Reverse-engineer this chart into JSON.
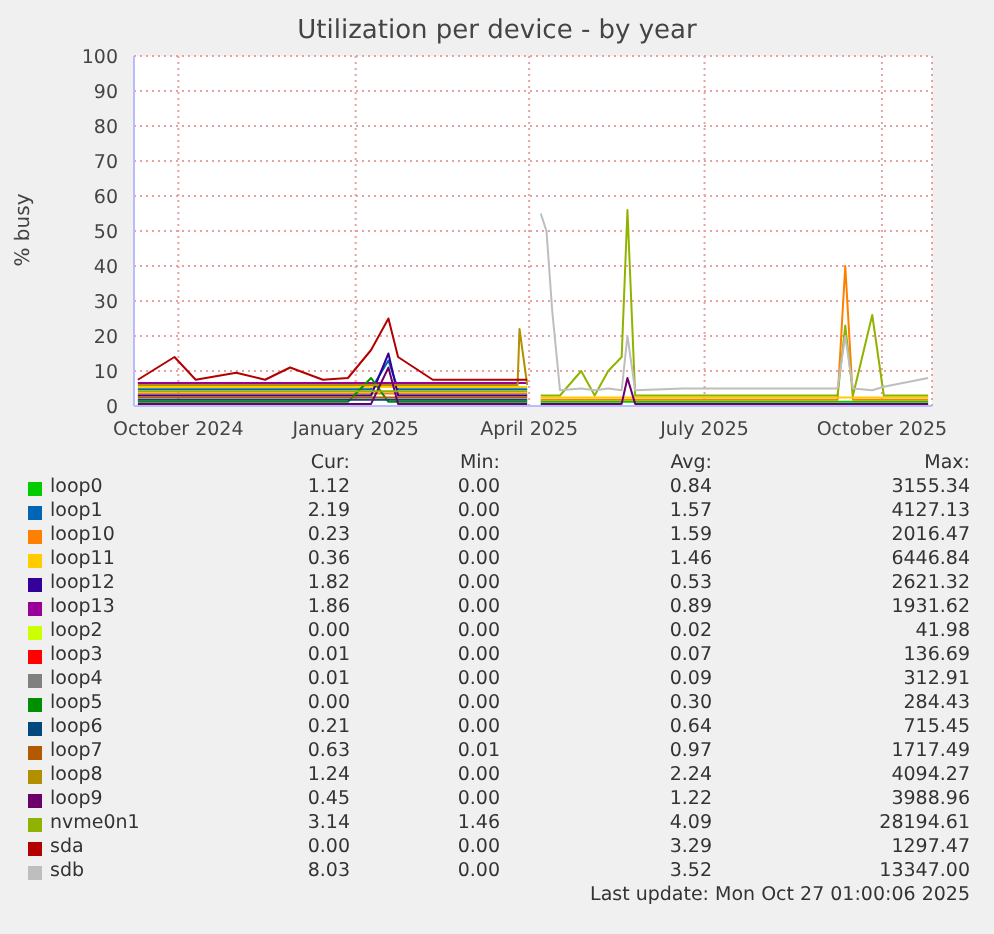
{
  "chart_data": {
    "type": "line",
    "title": "Utilization per device - by year",
    "ylabel": "% busy",
    "x": [
      "2024-09-10",
      "2024-09-29",
      "2024-10-10",
      "2024-10-31",
      "2024-11-15",
      "2024-11-28",
      "2024-12-15",
      "2024-12-28",
      "2025-01-09",
      "2025-01-18",
      "2025-01-23",
      "2025-02-10",
      "2025-03-01",
      "2025-03-26",
      "2025-03-27",
      "2025-03-31",
      "2025-04-03",
      "2025-04-07",
      "2025-04-10",
      "2025-04-13",
      "2025-04-17",
      "2025-04-28",
      "2025-05-05",
      "2025-05-12",
      "2025-05-19",
      "2025-05-22",
      "2025-05-26",
      "2025-06-20",
      "2025-07-20",
      "2025-08-20",
      "2025-09-08",
      "2025-09-12",
      "2025-09-16",
      "2025-09-26",
      "2025-10-02",
      "2025-10-25"
    ],
    "xlim": [
      "2024-09-08",
      "2025-10-27"
    ],
    "xticks": [
      {
        "value": "2024-10-01",
        "label": "October 2024"
      },
      {
        "value": "2025-01-01",
        "label": "January 2025"
      },
      {
        "value": "2025-04-01",
        "label": "April 2025"
      },
      {
        "value": "2025-07-01",
        "label": "July 2025"
      },
      {
        "value": "2025-10-01",
        "label": "October 2025"
      }
    ],
    "ylim": [
      0,
      100
    ],
    "yticks": [
      0,
      10,
      20,
      30,
      40,
      50,
      60,
      70,
      80,
      90,
      100
    ],
    "grid": true,
    "legend": "bottom",
    "marker": "none",
    "line_style": "solid",
    "series": [
      {
        "name": "loop0",
        "color": "#00cc00",
        "values": [
          null,
          null,
          null,
          null,
          null,
          null,
          null,
          null,
          null,
          null,
          null,
          null,
          null,
          null,
          null,
          null,
          null,
          1.2,
          1.2,
          1.2,
          1.2,
          1.2,
          1.2,
          1.2,
          1.2,
          1.2,
          1.2,
          1.2,
          1.2,
          1.2,
          1.2,
          1.2,
          1.2,
          1.2,
          1.2,
          1.2
        ]
      },
      {
        "name": "loop1",
        "color": "#0066b3",
        "values": [
          4.8,
          4.8,
          4.8,
          4.8,
          4.8,
          4.8,
          4.8,
          4.8,
          4.8,
          13,
          4.8,
          4.8,
          4.8,
          4.8,
          4.8,
          4.8,
          null,
          null,
          null,
          null,
          null,
          null,
          null,
          null,
          null,
          null,
          null,
          null,
          null,
          null,
          null,
          null,
          null,
          null,
          null,
          null
        ]
      },
      {
        "name": "loop10",
        "color": "#ff8000",
        "values": [
          3.6,
          3.6,
          3.6,
          3.6,
          3.6,
          3.6,
          3.6,
          3.6,
          3.6,
          3.6,
          3.6,
          3.6,
          3.6,
          3.6,
          3.6,
          3.6,
          null,
          1.8,
          1.8,
          1.8,
          1.8,
          1.8,
          1.8,
          1.8,
          1.8,
          1.8,
          1.8,
          1.8,
          1.8,
          1.8,
          1.8,
          40,
          1.8,
          1.8,
          1.8,
          1.8
        ]
      },
      {
        "name": "loop11",
        "color": "#ffcc00",
        "values": [
          5.4,
          5.4,
          5.4,
          5.4,
          5.4,
          5.4,
          5.4,
          5.4,
          5.4,
          5.4,
          5.4,
          5.4,
          5.4,
          5.4,
          5.4,
          5.4,
          null,
          2.4,
          2.4,
          2.4,
          2.4,
          2.4,
          2.4,
          2.4,
          2.4,
          2.4,
          2.4,
          2.4,
          2.4,
          2.4,
          2.4,
          2.4,
          2.4,
          2.4,
          2.4,
          2.4
        ]
      },
      {
        "name": "loop12",
        "color": "#330099",
        "values": [
          3,
          3,
          3,
          3,
          3,
          3,
          3,
          3,
          3,
          15,
          3,
          3,
          3,
          3,
          3,
          3,
          null,
          null,
          null,
          null,
          null,
          null,
          null,
          null,
          null,
          null,
          null,
          null,
          null,
          null,
          null,
          null,
          null,
          null,
          null,
          null
        ]
      },
      {
        "name": "loop13",
        "color": "#990099",
        "values": [
          6.6,
          6.6,
          6.6,
          6.6,
          6.6,
          6.6,
          6.6,
          6.6,
          6.6,
          6.6,
          6.6,
          6.6,
          6.6,
          6.6,
          6.6,
          6.6,
          null,
          null,
          null,
          null,
          null,
          null,
          null,
          null,
          null,
          null,
          null,
          null,
          null,
          null,
          null,
          null,
          null,
          null,
          null,
          null
        ]
      },
      {
        "name": "loop2",
        "color": "#ccff00",
        "values": [
          null,
          null,
          null,
          null,
          null,
          null,
          null,
          null,
          null,
          null,
          null,
          null,
          null,
          null,
          null,
          null,
          null,
          null,
          null,
          null,
          null,
          null,
          null,
          null,
          null,
          null,
          null,
          null,
          null,
          null,
          null,
          null,
          null,
          null,
          null,
          null
        ]
      },
      {
        "name": "loop3",
        "color": "#ff0000",
        "values": [
          null,
          null,
          null,
          null,
          null,
          null,
          null,
          null,
          null,
          null,
          null,
          null,
          null,
          null,
          null,
          null,
          null,
          null,
          null,
          null,
          null,
          null,
          null,
          null,
          null,
          null,
          null,
          null,
          null,
          null,
          null,
          null,
          null,
          null,
          null,
          null
        ]
      },
      {
        "name": "loop4",
        "color": "#808080",
        "values": [
          null,
          null,
          null,
          null,
          null,
          null,
          null,
          null,
          null,
          null,
          null,
          null,
          null,
          null,
          null,
          null,
          null,
          null,
          null,
          null,
          null,
          null,
          null,
          null,
          null,
          null,
          null,
          null,
          null,
          null,
          null,
          null,
          null,
          null,
          null,
          null
        ]
      },
      {
        "name": "loop5",
        "color": "#008f00",
        "values": [
          1.2,
          1.2,
          1.2,
          1.2,
          1.2,
          1.2,
          1.2,
          1.2,
          8,
          1.2,
          1.2,
          1.2,
          1.2,
          1.2,
          1.2,
          1.2,
          null,
          null,
          null,
          null,
          null,
          null,
          null,
          null,
          null,
          null,
          null,
          null,
          null,
          null,
          null,
          null,
          null,
          null,
          null,
          null
        ]
      },
      {
        "name": "loop6",
        "color": "#00487d",
        "values": [
          1.8,
          1.8,
          1.8,
          1.8,
          1.8,
          1.8,
          1.8,
          1.8,
          1.8,
          1.8,
          1.8,
          1.8,
          1.8,
          1.8,
          1.8,
          1.8,
          null,
          null,
          null,
          null,
          null,
          null,
          null,
          null,
          null,
          null,
          null,
          null,
          null,
          null,
          null,
          null,
          null,
          null,
          null,
          null
        ]
      },
      {
        "name": "loop7",
        "color": "#b35a00",
        "values": [
          2.4,
          2.4,
          2.4,
          2.4,
          2.4,
          2.4,
          2.4,
          2.4,
          2.4,
          2.4,
          2.4,
          2.4,
          2.4,
          2.4,
          2.4,
          2.4,
          null,
          null,
          null,
          null,
          null,
          null,
          null,
          null,
          null,
          null,
          null,
          null,
          null,
          null,
          null,
          null,
          null,
          null,
          null,
          null
        ]
      },
      {
        "name": "loop8",
        "color": "#b38f00",
        "values": [
          6,
          6,
          6,
          6,
          6,
          6,
          6,
          6,
          6,
          6,
          6,
          6,
          6,
          6,
          22,
          6,
          null,
          null,
          null,
          null,
          null,
          null,
          null,
          null,
          null,
          null,
          null,
          null,
          null,
          null,
          null,
          null,
          null,
          null,
          null,
          null
        ]
      },
      {
        "name": "loop9",
        "color": "#6b006b",
        "values": [
          0.6,
          0.6,
          0.6,
          0.6,
          0.6,
          0.6,
          0.6,
          0.6,
          0.6,
          11,
          0.6,
          0.6,
          0.6,
          0.6,
          0.6,
          0.6,
          null,
          0.6,
          0.6,
          0.6,
          0.6,
          0.6,
          0.6,
          0.6,
          0.6,
          8,
          0.6,
          0.6,
          0.6,
          0.6,
          0.6,
          0.6,
          0.6,
          0.6,
          0.6,
          0.6
        ]
      },
      {
        "name": "nvme0n1",
        "color": "#8fb300",
        "values": [
          4.2,
          4.2,
          4.2,
          4.2,
          4.2,
          4.2,
          4.2,
          4.2,
          4.2,
          4.2,
          4.2,
          4.2,
          4.2,
          4.2,
          4.2,
          4.2,
          null,
          3,
          3,
          3,
          3,
          10,
          3,
          10,
          14,
          56,
          3,
          3,
          3,
          3,
          3,
          23,
          3,
          26,
          3,
          3
        ]
      },
      {
        "name": "sda",
        "color": "#b30000",
        "values": [
          7.5,
          14,
          7.5,
          9.5,
          7.5,
          11,
          7.5,
          8,
          16,
          25,
          14,
          7.5,
          7.5,
          7.5,
          7.5,
          7.5,
          null,
          null,
          null,
          null,
          null,
          null,
          null,
          null,
          null,
          null,
          null,
          null,
          null,
          null,
          null,
          null,
          null,
          null,
          null,
          null
        ]
      },
      {
        "name": "sdb",
        "color": "#bebebe",
        "values": [
          null,
          null,
          null,
          null,
          null,
          null,
          null,
          null,
          null,
          null,
          null,
          null,
          null,
          null,
          null,
          null,
          null,
          55,
          50,
          27,
          4.5,
          5,
          4.5,
          5,
          4.5,
          20,
          4.5,
          5,
          5,
          5,
          5,
          20,
          5,
          4.5,
          5.5,
          8
        ]
      }
    ],
    "annotations": [
      "Cur:",
      "Min:",
      "Avg:",
      "Max:",
      "1.12",
      "0.00",
      "0.84",
      "3155.34",
      "2.19",
      "0.00",
      "1.57",
      "4127.13",
      "0.23",
      "0.00",
      "1.59",
      "2016.47",
      "0.36",
      "0.00",
      "1.46",
      "6446.84",
      "1.82",
      "0.00",
      "0.53",
      "2621.32",
      "1.86",
      "0.00",
      "0.89",
      "1931.62",
      "0.00",
      "0.00",
      "0.02",
      "41.98",
      "0.01",
      "0.00",
      "0.07",
      "136.69",
      "0.01",
      "0.00",
      "0.09",
      "312.91",
      "0.00",
      "0.00",
      "0.30",
      "284.43",
      "0.21",
      "0.00",
      "0.64",
      "715.45",
      "0.63",
      "0.01",
      "0.97",
      "1717.49",
      "1.24",
      "0.00",
      "2.24",
      "4094.27",
      "0.45",
      "0.00",
      "1.22",
      "3988.96",
      "3.14",
      "1.46",
      "4.09",
      "28194.61",
      "0.00",
      "0.00",
      "3.29",
      "1297.47",
      "8.03",
      "0.00",
      "3.52",
      "13347.00",
      "Last update: Mon Oct 27 01:00:06 2025"
    ]
  }
}
